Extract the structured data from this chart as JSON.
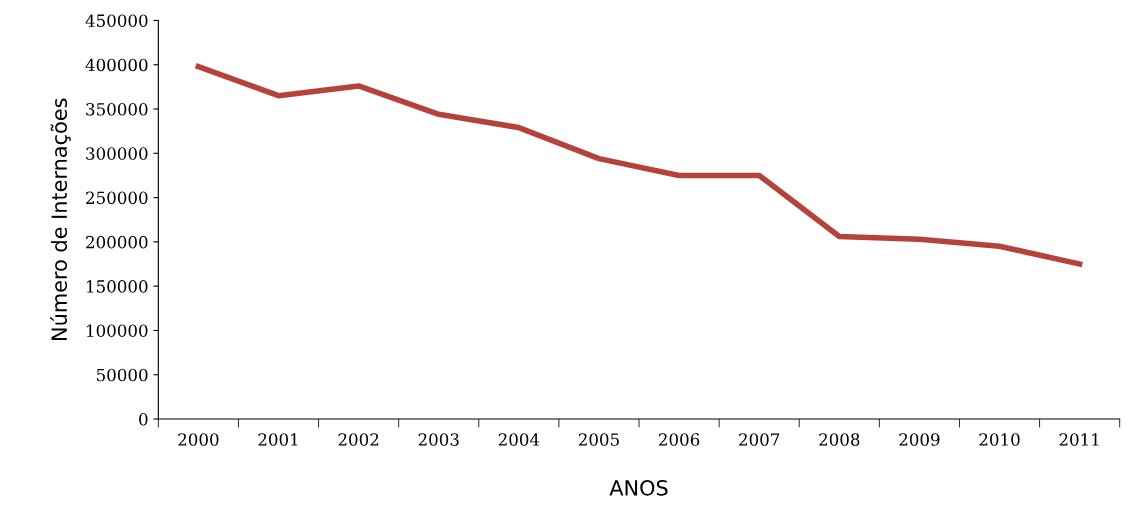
{
  "chart_data": {
    "type": "line",
    "xlabel": "ANOS",
    "ylabel": "Número de Internações",
    "categories": [
      "2000",
      "2001",
      "2002",
      "2003",
      "2004",
      "2005",
      "2006",
      "2007",
      "2008",
      "2009",
      "2010",
      "2011"
    ],
    "series": [
      {
        "color": "#b5433c",
        "values": [
          398000,
          365000,
          376000,
          344000,
          329000,
          294000,
          275000,
          275000,
          206000,
          203000,
          195000,
          175000
        ]
      }
    ],
    "ylim": [
      0,
      450000
    ],
    "yticks": [
      0,
      50000,
      100000,
      150000,
      200000,
      250000,
      300000,
      350000,
      400000,
      450000
    ],
    "marker": "none",
    "line_style": "solid"
  }
}
